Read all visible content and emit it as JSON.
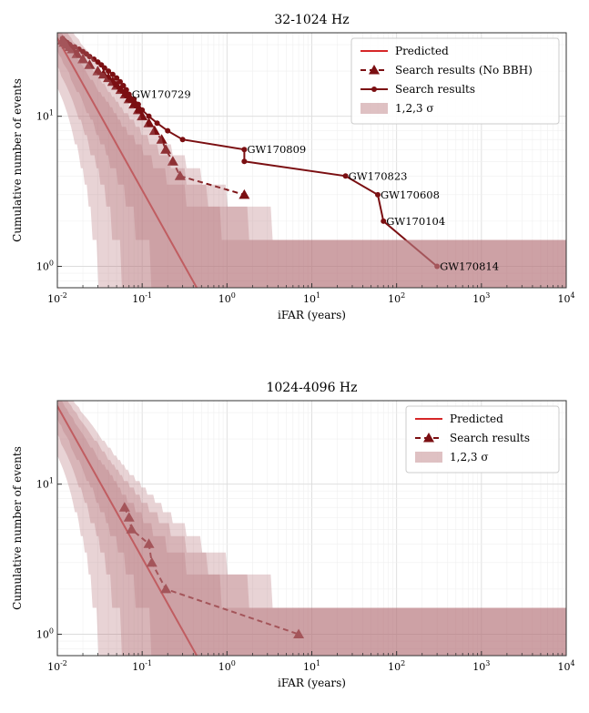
{
  "chart_data": [
    {
      "type": "line",
      "title": "32-1024 Hz",
      "xlabel": "iFAR (years)",
      "ylabel": "Cumulative number of events",
      "xscale": "log",
      "yscale": "log",
      "xlim": [
        0.01,
        10000
      ],
      "ylim": [
        0.72,
        36
      ],
      "xticks": [
        0.01,
        0.1,
        1,
        10,
        100,
        1000,
        10000
      ],
      "xticklabels": [
        "10^-2",
        "10^-1",
        "10^0",
        "10^1",
        "10^2",
        "10^3",
        "10^4"
      ],
      "yticks": [
        1,
        10
      ],
      "yticklabels": [
        "10^0",
        "10^1"
      ],
      "grid": true,
      "legend_position": "top-right",
      "legend": [
        "Predicted",
        "Search results (No BBH)",
        "Search results",
        "1,2,3 σ"
      ],
      "colors": {
        "predicted": "#d62728",
        "search": "#7b0f12",
        "band": "#b8757b"
      },
      "predicted_line": {
        "x": [
          0.0092,
          0.44
        ],
        "y": [
          36,
          0.72
        ]
      },
      "series": [
        {
          "name": "Search results (No BBH)",
          "style": "dashed-triangle",
          "x": [
            0.0115,
            0.012,
            0.013,
            0.014,
            0.015,
            0.017,
            0.02,
            0.024,
            0.03,
            0.035,
            0.04,
            0.045,
            0.05,
            0.056,
            0.063,
            0.07,
            0.08,
            0.09,
            0.1,
            0.12,
            0.14,
            0.17,
            0.19,
            0.23,
            0.28,
            1.6
          ],
          "y": [
            32,
            31,
            30,
            29,
            28,
            26,
            24,
            22,
            20,
            19,
            18,
            17,
            16,
            15,
            14,
            13,
            12,
            11,
            10,
            9,
            8,
            7,
            6,
            5,
            4,
            3
          ]
        },
        {
          "name": "Search results",
          "style": "solid-dot",
          "x": [
            0.0115,
            0.012,
            0.013,
            0.014,
            0.016,
            0.018,
            0.02,
            0.022,
            0.024,
            0.027,
            0.03,
            0.033,
            0.036,
            0.04,
            0.045,
            0.05,
            0.055,
            0.06,
            0.065,
            0.07,
            0.08,
            0.09,
            0.1,
            0.12,
            0.15,
            0.2,
            0.3,
            1.6,
            1.6,
            25,
            60,
            70,
            300
          ],
          "y": [
            33,
            32,
            31,
            30,
            29,
            28,
            27,
            26,
            25,
            24,
            23,
            22,
            21,
            20,
            19,
            18,
            17,
            16,
            15,
            14,
            13,
            12,
            11,
            10,
            9,
            8,
            7,
            6,
            5,
            4,
            3,
            2,
            1
          ]
        }
      ],
      "annotations": [
        {
          "text": "GW170729",
          "x": 0.07,
          "y": 14
        },
        {
          "text": "GW170809",
          "x": 1.6,
          "y": 6
        },
        {
          "text": "GW170823",
          "x": 25,
          "y": 4
        },
        {
          "text": "GW170608",
          "x": 60,
          "y": 3
        },
        {
          "text": "GW170104",
          "x": 70,
          "y": 2
        },
        {
          "text": "GW170814",
          "x": 300,
          "y": 1
        }
      ]
    },
    {
      "type": "line",
      "title": "1024-4096 Hz",
      "xlabel": "iFAR (years)",
      "ylabel": "Cumulative number of events",
      "xscale": "log",
      "yscale": "log",
      "xlim": [
        0.01,
        10000
      ],
      "ylim": [
        0.72,
        36
      ],
      "xticks": [
        0.01,
        0.1,
        1,
        10,
        100,
        1000,
        10000
      ],
      "xticklabels": [
        "10^-2",
        "10^-1",
        "10^0",
        "10^1",
        "10^2",
        "10^3",
        "10^4"
      ],
      "yticks": [
        1,
        10
      ],
      "yticklabels": [
        "10^0",
        "10^1"
      ],
      "grid": true,
      "legend_position": "top-right",
      "legend": [
        "Predicted",
        "Search results",
        "1,2,3 σ"
      ],
      "colors": {
        "predicted": "#d62728",
        "search": "#7b0f12",
        "band": "#b8757b"
      },
      "predicted_line": {
        "x": [
          0.0092,
          0.44
        ],
        "y": [
          36,
          0.72
        ]
      },
      "series": [
        {
          "name": "Search results",
          "style": "dashed-triangle",
          "x": [
            0.062,
            0.07,
            0.075,
            0.12,
            0.13,
            0.19,
            7
          ],
          "y": [
            7,
            6,
            5,
            4,
            3,
            2,
            1
          ]
        }
      ],
      "annotations": []
    }
  ]
}
